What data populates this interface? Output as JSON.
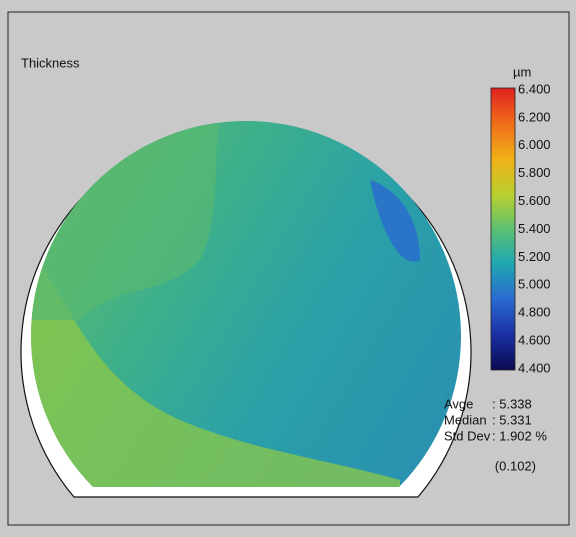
{
  "label": "Thickness",
  "colorbar": {
    "unit": "µm",
    "labels": [
      "6.400",
      "6.200",
      "6.000",
      "5.800",
      "5.600",
      "5.400",
      "5.200",
      "5.000",
      "4.800",
      "4.600",
      "4.400"
    ]
  },
  "stats": [
    {
      "name": "Avge",
      "value": ": 5.338"
    },
    {
      "name": "Median",
      "value": ": 5.331"
    },
    {
      "name": "Std Dev",
      "value": ": 1.902 %"
    }
  ],
  "std_dev_abs": "(0.102)"
}
